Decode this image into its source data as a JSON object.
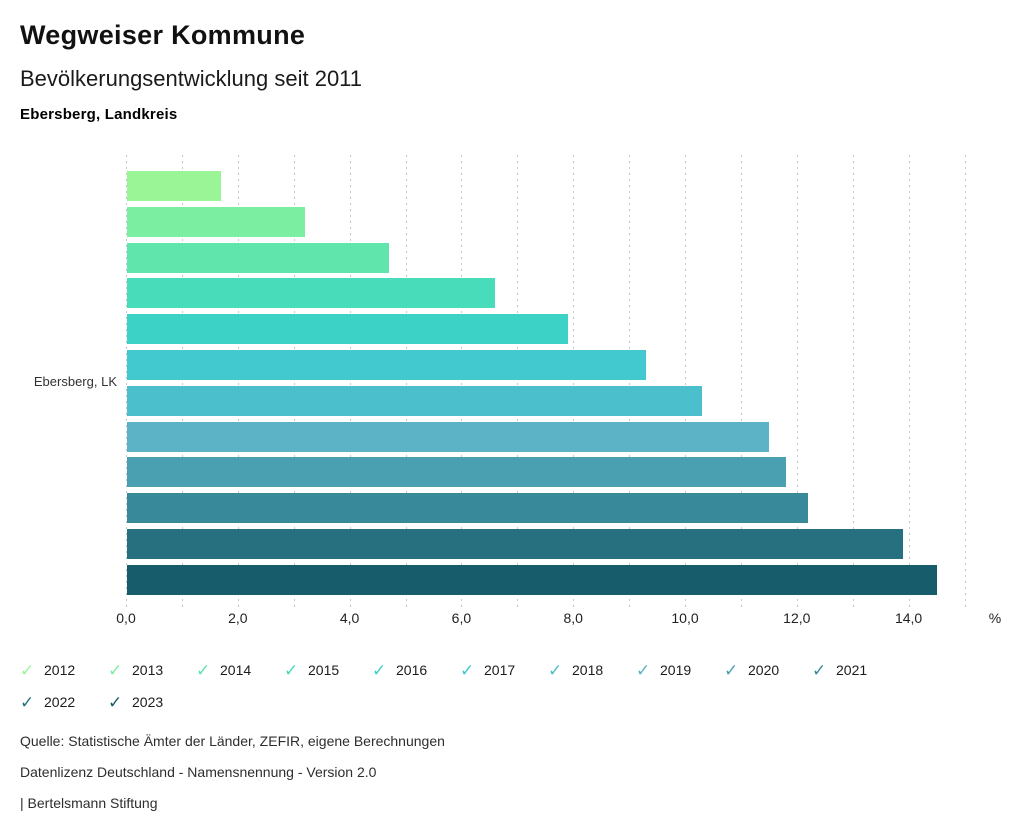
{
  "header": {
    "title": "Wegweiser Kommune",
    "subtitle": "Bevölkerungsentwicklung seit 2011",
    "region": "Ebersberg, Landkreis"
  },
  "chart_data": {
    "type": "bar",
    "orientation": "horizontal",
    "title": "Bevölkerungsentwicklung seit 2011",
    "category_label": "Ebersberg, LK",
    "unit": "%",
    "xlim": [
      0,
      15
    ],
    "grid": "vertical dashed gridlines every 1.0",
    "legend_position": "bottom",
    "x_ticks": [
      {
        "value": 0,
        "label": "0,0"
      },
      {
        "value": 2,
        "label": "2,0"
      },
      {
        "value": 4,
        "label": "4,0"
      },
      {
        "value": 6,
        "label": "6,0"
      },
      {
        "value": 8,
        "label": "8,0"
      },
      {
        "value": 10,
        "label": "10,0"
      },
      {
        "value": 12,
        "label": "12,0"
      },
      {
        "value": 14,
        "label": "14,0"
      }
    ],
    "series": [
      {
        "year": "2012",
        "value": 1.7,
        "color": "#9AF597"
      },
      {
        "year": "2013",
        "value": 3.2,
        "color": "#7CEEA1"
      },
      {
        "year": "2014",
        "value": 4.7,
        "color": "#60E5AD"
      },
      {
        "year": "2015",
        "value": 6.6,
        "color": "#49DCBA"
      },
      {
        "year": "2016",
        "value": 7.9,
        "color": "#3DD2C6"
      },
      {
        "year": "2017",
        "value": 9.3,
        "color": "#41C9CF"
      },
      {
        "year": "2018",
        "value": 10.3,
        "color": "#4CBFCD"
      },
      {
        "year": "2019",
        "value": 11.5,
        "color": "#5CB3C5"
      },
      {
        "year": "2020",
        "value": 11.8,
        "color": "#4A9FB1"
      },
      {
        "year": "2021",
        "value": 12.2,
        "color": "#388A9B"
      },
      {
        "year": "2022",
        "value": 13.9,
        "color": "#27707F"
      },
      {
        "year": "2023",
        "value": 14.5,
        "color": "#175C6B"
      }
    ]
  },
  "legend": {
    "check_icon": "✓"
  },
  "footer": {
    "source": "Quelle: Statistische Ämter der Länder, ZEFIR, eigene Berechnungen",
    "license": "Datenlizenz Deutschland - Namensnennung - Version 2.0",
    "attribution": "| Bertelsmann Stiftung"
  }
}
